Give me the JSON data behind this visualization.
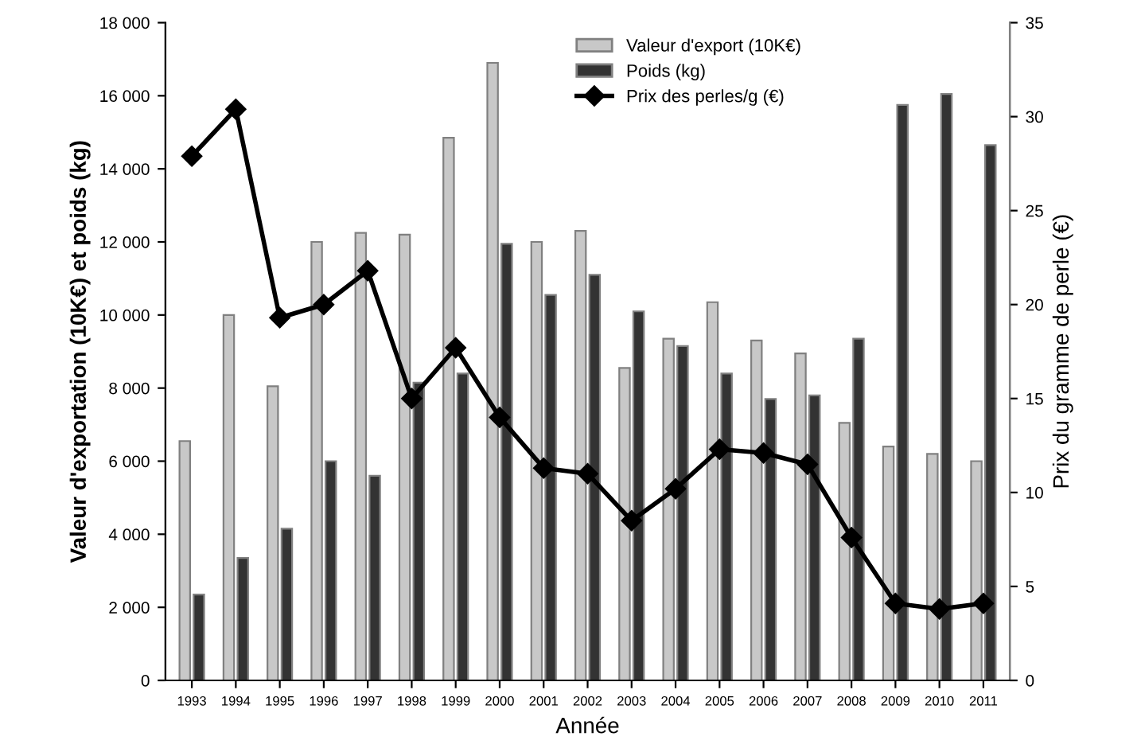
{
  "chart_data": {
    "type": "bar",
    "xlabel": "Année",
    "ylabel": "Valeur d'exportation (10K€) et poids (kg)",
    "y2label": "Prix du gramme de perle (€)",
    "categories": [
      "1993",
      "1994",
      "1995",
      "1996",
      "1997",
      "1998",
      "1999",
      "2000",
      "2001",
      "2002",
      "2003",
      "2004",
      "2005",
      "2006",
      "2007",
      "2008",
      "2009",
      "2010",
      "2011"
    ],
    "series": [
      {
        "name": "Valeur d'export (10K€)",
        "color": "#c8c8c8",
        "values": [
          6550,
          10000,
          8050,
          12000,
          12250,
          12200,
          14850,
          16900,
          12000,
          12300,
          8550,
          9350,
          10350,
          9300,
          8950,
          7050,
          6400,
          6200,
          6000
        ]
      },
      {
        "name": "Poids (kg)",
        "color": "#333333",
        "values": [
          2350,
          3350,
          4150,
          6000,
          5600,
          8150,
          8400,
          11950,
          10550,
          11100,
          10100,
          9150,
          8400,
          7700,
          7800,
          9350,
          15750,
          16050,
          14650
        ]
      },
      {
        "name": "Prix des perles/g (€)",
        "type": "line",
        "axis": "y2",
        "color": "#000000",
        "values": [
          27.9,
          30.4,
          19.3,
          20.0,
          21.8,
          15.0,
          17.7,
          14.0,
          11.3,
          11.0,
          8.5,
          10.2,
          12.3,
          12.1,
          11.5,
          7.6,
          4.1,
          3.8,
          4.1
        ]
      }
    ],
    "ylim": [
      0,
      18000
    ],
    "yticks": [
      0,
      {
        "value": 2000,
        "label": "2 000"
      },
      {
        "value": 4000,
        "label": "4 000"
      },
      {
        "value": 6000,
        "label": "6 000"
      },
      {
        "value": 8000,
        "label": "8 000"
      },
      {
        "value": 10000,
        "label": "10 000"
      },
      {
        "value": 12000,
        "label": "12 000"
      },
      {
        "value": 14000,
        "label": "14 000"
      },
      {
        "value": 16000,
        "label": "16 000"
      },
      {
        "value": 18000,
        "label": "18 000"
      }
    ],
    "y2lim": [
      0,
      35
    ],
    "y2ticks": [
      0,
      5,
      10,
      15,
      20,
      25,
      30,
      35
    ],
    "marker": "diamond",
    "line_style": "solid",
    "grid": false,
    "legend": "top"
  }
}
